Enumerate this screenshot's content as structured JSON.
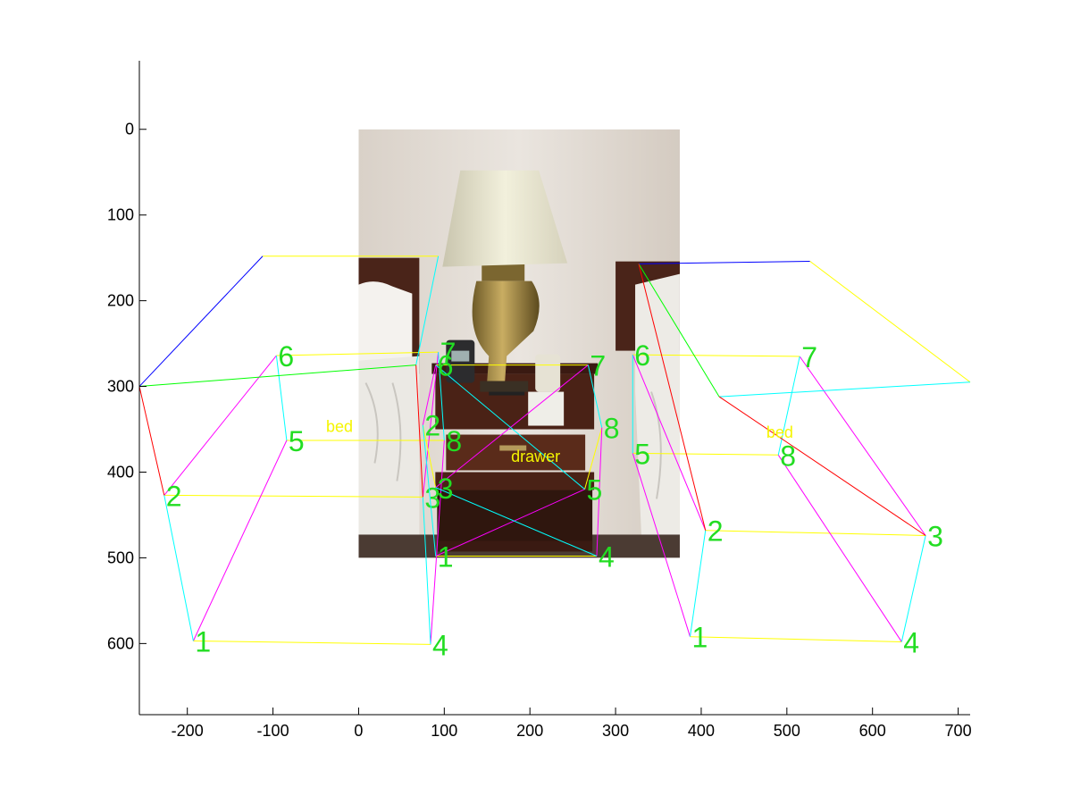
{
  "chart_data": {
    "type": "scatter",
    "title": "",
    "xlabel": "",
    "ylabel": "",
    "xlim": [
      -256,
      714
    ],
    "ylim": [
      -80,
      683
    ],
    "y_reversed": true,
    "grid": false,
    "x_ticks": [
      -200,
      -100,
      0,
      100,
      200,
      300,
      400,
      500,
      600,
      700
    ],
    "y_ticks": [
      0,
      100,
      200,
      300,
      400,
      500,
      600
    ],
    "background_image": {
      "description_name": "hotel-nightstand-photo",
      "x_range": [
        0,
        375
      ],
      "y_range": [
        0,
        500
      ]
    },
    "colors": {
      "axis": "#000000",
      "green": "#00ff00",
      "yellow": "#ffff00",
      "blue": "#0000ff",
      "cyan": "#00ffff",
      "magenta": "#ff00ff",
      "red": "#ff0000",
      "label_green": "#22dd22",
      "label_yellow": "#f5f500"
    },
    "annotations": [
      {
        "text": "bed",
        "x": -38,
        "y": 353,
        "color": "label_yellow"
      },
      {
        "text": "drawer",
        "x": 178,
        "y": 388,
        "color": "label_yellow"
      },
      {
        "text": "bed",
        "x": 476,
        "y": 360,
        "color": "label_yellow"
      }
    ],
    "boxes": [
      {
        "name": "left-bed-box",
        "vertices": [
          {
            "label": "1",
            "x": -193,
            "y": 597
          },
          {
            "label": "2",
            "x": -227,
            "y": 427
          },
          {
            "label": "3",
            "x": 75,
            "y": 429
          },
          {
            "label": "4",
            "x": 84,
            "y": 601
          },
          {
            "label": "5",
            "x": -84,
            "y": 363
          },
          {
            "label": "6",
            "x": -96,
            "y": 264
          },
          {
            "label": "7",
            "x": 93,
            "y": 260
          },
          {
            "label": "8",
            "x": 100,
            "y": 363
          }
        ],
        "outer": [
          {
            "x": -256,
            "y": 300
          },
          {
            "x": -112,
            "y": 148
          },
          {
            "x": 93,
            "y": 148
          },
          {
            "x": 67,
            "y": 275
          }
        ]
      },
      {
        "name": "drawer-box",
        "vertices": [
          {
            "label": "1",
            "x": 90,
            "y": 498
          },
          {
            "label": "2",
            "x": 75,
            "y": 345
          },
          {
            "label": "3",
            "x": 90,
            "y": 418
          },
          {
            "label": "4",
            "x": 278,
            "y": 498
          },
          {
            "label": "5",
            "x": 264,
            "y": 420
          },
          {
            "label": "6",
            "x": 90,
            "y": 275
          },
          {
            "label": "7",
            "x": 268,
            "y": 275
          },
          {
            "label": "8",
            "x": 284,
            "y": 348
          }
        ]
      },
      {
        "name": "right-bed-box",
        "vertices": [
          {
            "label": "1",
            "x": 387,
            "y": 592
          },
          {
            "label": "2",
            "x": 405,
            "y": 468
          },
          {
            "label": "3",
            "x": 662,
            "y": 474
          },
          {
            "label": "4",
            "x": 634,
            "y": 598
          },
          {
            "label": "5",
            "x": 320,
            "y": 378
          },
          {
            "label": "6",
            "x": 320,
            "y": 263
          },
          {
            "label": "7",
            "x": 515,
            "y": 265
          },
          {
            "label": "8",
            "x": 490,
            "y": 380
          }
        ],
        "outer": [
          {
            "x": 327,
            "y": 157
          },
          {
            "x": 527,
            "y": 154
          },
          {
            "x": 714,
            "y": 295
          },
          {
            "x": 421,
            "y": 312
          }
        ]
      }
    ]
  }
}
